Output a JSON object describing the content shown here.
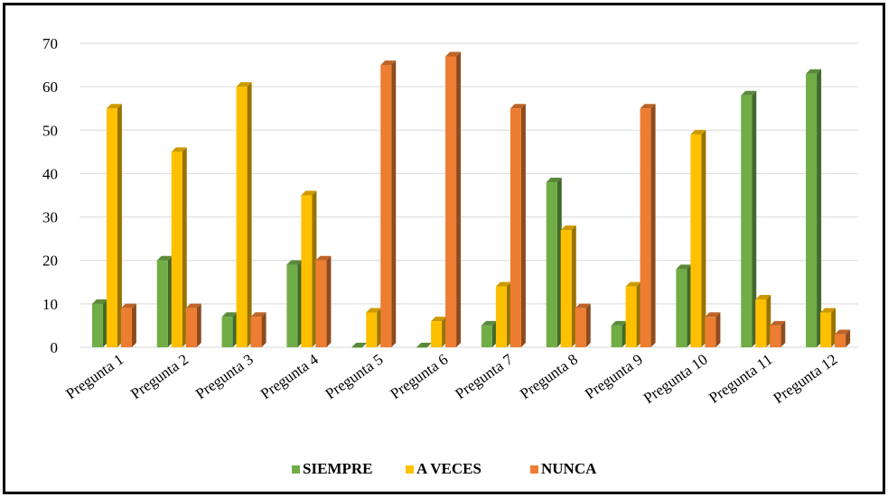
{
  "chart_data": {
    "type": "bar",
    "categories": [
      "Pregunta 1",
      "Pregunta 2",
      "Pregunta 3",
      "Pregunta 4",
      "Pregunta 5",
      "Pregunta 6",
      "Pregunta 7",
      "Pregunta 8",
      "Pregunta 9",
      "Pregunta 10",
      "Pregunta 11",
      "Pregunta 12"
    ],
    "series": [
      {
        "name": "SIEMPRE",
        "color": "#70ad47",
        "values": [
          10,
          20,
          7,
          19,
          0,
          0,
          5,
          38,
          5,
          18,
          58,
          63
        ]
      },
      {
        "name": "A VECES",
        "color": "#ffc000",
        "values": [
          55,
          45,
          60,
          35,
          8,
          6,
          14,
          27,
          14,
          49,
          11,
          8
        ]
      },
      {
        "name": "NUNCA",
        "color": "#ed7d31",
        "values": [
          9,
          9,
          7,
          20,
          65,
          67,
          55,
          9,
          55,
          7,
          5,
          3
        ]
      }
    ],
    "yticks": [
      "0",
      "10",
      "20",
      "30",
      "40",
      "50",
      "60",
      "70"
    ],
    "ylim": [
      0,
      70
    ],
    "grid": true,
    "legend_position": "bottom",
    "title": "",
    "xlabel": "",
    "ylabel": ""
  }
}
